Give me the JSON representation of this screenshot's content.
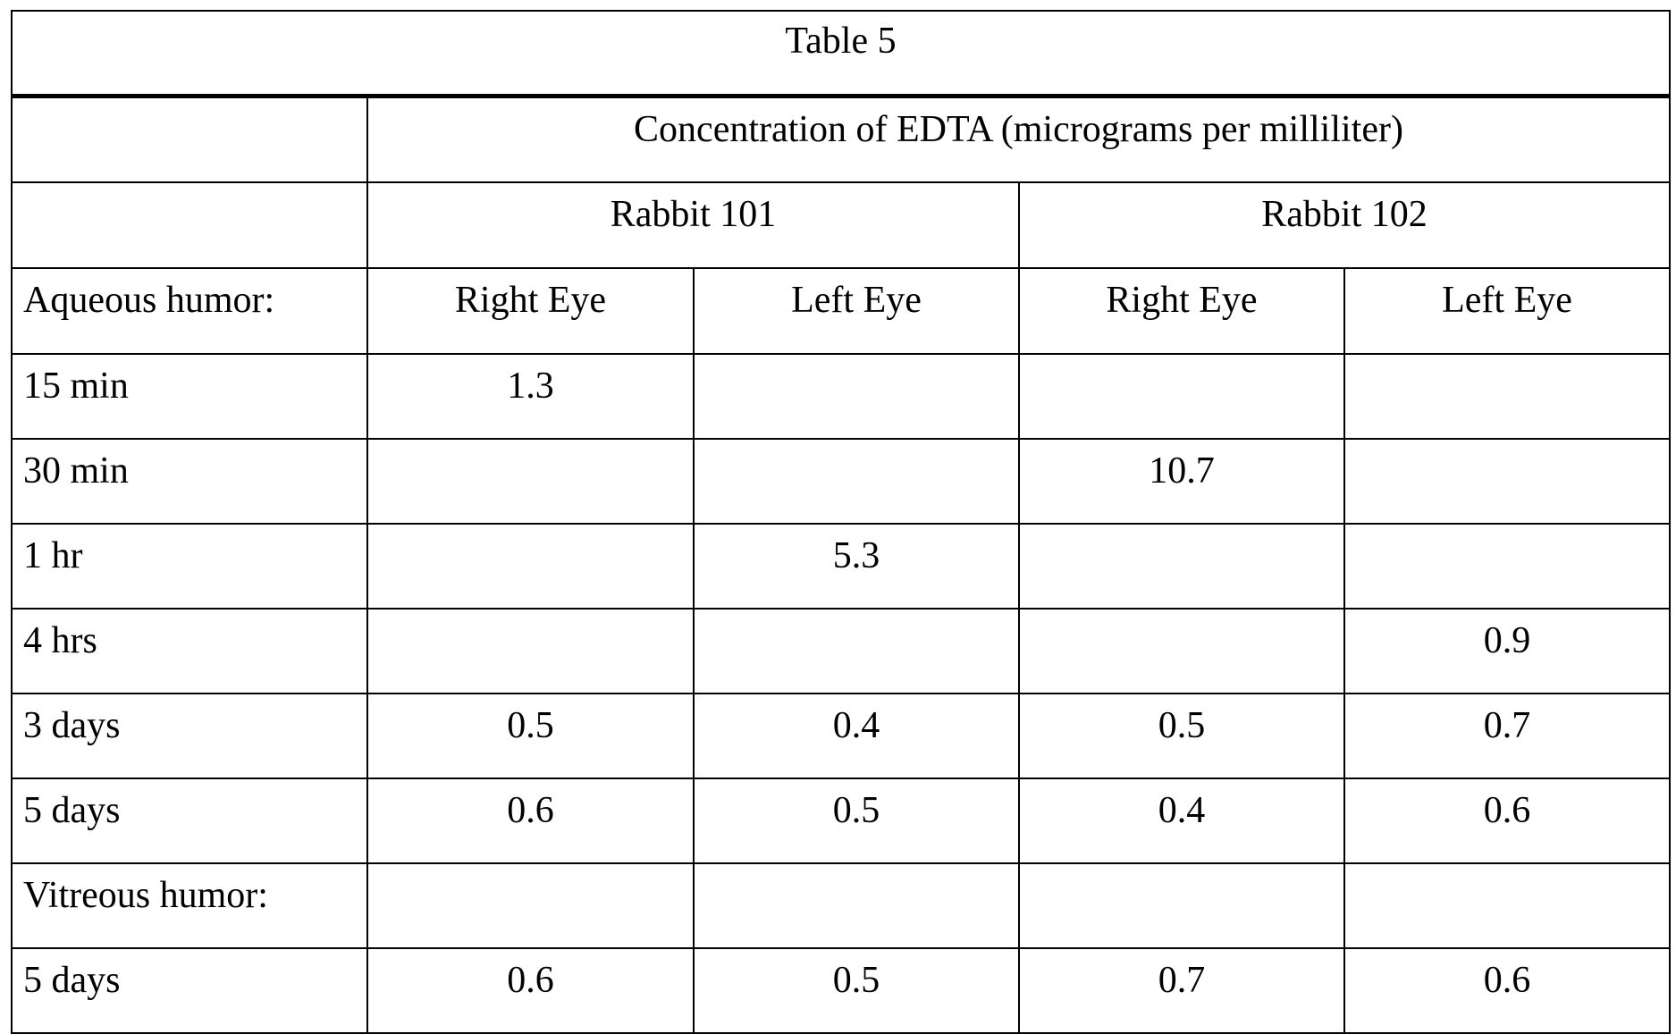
{
  "table": {
    "title": "Table 5",
    "measure_header": "Concentration of EDTA (micrograms per milliliter)",
    "groups": [
      "Rabbit 101",
      "Rabbit 102"
    ],
    "section_header": "Aqueous humor:",
    "eye_headers": [
      "Right Eye",
      "Left Eye",
      "Right Eye",
      "Left Eye"
    ],
    "rows": [
      {
        "label": "15 min",
        "values": [
          "1.3",
          "",
          "",
          ""
        ]
      },
      {
        "label": "30 min",
        "values": [
          "",
          "",
          "10.7",
          ""
        ]
      },
      {
        "label": "1 hr",
        "values": [
          "",
          "5.3",
          "",
          ""
        ]
      },
      {
        "label": "4 hrs",
        "values": [
          "",
          "",
          "",
          "0.9"
        ]
      },
      {
        "label": "3 days",
        "values": [
          "0.5",
          "0.4",
          "0.5",
          "0.7"
        ]
      },
      {
        "label": "5 days",
        "values": [
          "0.6",
          "0.5",
          "0.4",
          "0.6"
        ]
      },
      {
        "label": "Vitreous humor:",
        "values": [
          "",
          "",
          "",
          ""
        ]
      },
      {
        "label": "5 days",
        "values": [
          "0.6",
          "0.5",
          "0.7",
          "0.6"
        ]
      }
    ]
  }
}
